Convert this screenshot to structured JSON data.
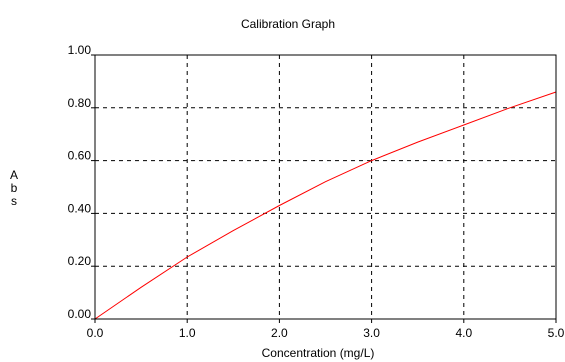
{
  "chart_data": {
    "type": "line",
    "title": "Calibration Graph",
    "xlabel": "Concentration (mg/L)",
    "ylabel": "Abs",
    "xlim": [
      0,
      5
    ],
    "ylim": [
      0,
      1
    ],
    "x_ticks": [
      0,
      1,
      2,
      3,
      4,
      5
    ],
    "x_tick_labels": [
      "0.0",
      "1.0",
      "2.0",
      "3.0",
      "4.0",
      "5.0"
    ],
    "y_ticks": [
      0,
      0.2,
      0.4,
      0.6,
      0.8,
      1.0
    ],
    "y_tick_labels": [
      "0.00",
      "0.20",
      "0.40",
      "0.60",
      "0.80",
      "1.00"
    ],
    "grid": true,
    "grid_style": "dashed",
    "series": [
      {
        "color": "#ff0000",
        "x": [
          0,
          0.5,
          1.0,
          1.5,
          2.0,
          2.5,
          3.0,
          3.5,
          4.0,
          4.5,
          5.0
        ],
        "y": [
          0,
          0.12,
          0.235,
          0.335,
          0.43,
          0.52,
          0.6,
          0.67,
          0.735,
          0.8,
          0.86
        ]
      }
    ]
  }
}
